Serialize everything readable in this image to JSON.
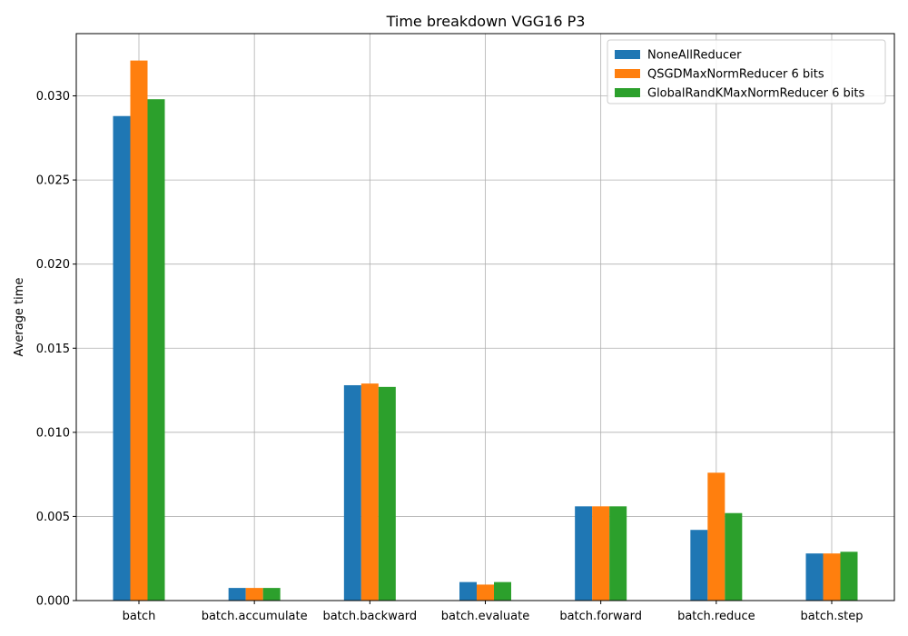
{
  "chart_data": {
    "type": "bar",
    "title": "Time breakdown VGG16 P3",
    "xlabel": "",
    "ylabel": "Average time",
    "ylim": [
      0,
      0.0337
    ],
    "yticks": [
      0.0,
      0.005,
      0.01,
      0.015,
      0.02,
      0.025,
      0.03
    ],
    "ytick_labels": [
      "0.000",
      "0.005",
      "0.010",
      "0.015",
      "0.020",
      "0.025",
      "0.030"
    ],
    "grid": true,
    "legend_position": "top-right",
    "categories": [
      "batch",
      "batch.accumulate",
      "batch.backward",
      "batch.evaluate",
      "batch.forward",
      "batch.reduce",
      "batch.step"
    ],
    "series": [
      {
        "name": "NoneAllReducer",
        "color": "#1f77b4",
        "values": [
          0.0288,
          0.00075,
          0.0128,
          0.0011,
          0.0056,
          0.0042,
          0.0028
        ]
      },
      {
        "name": "QSGDMaxNormReducer 6 bits",
        "color": "#ff7f0e",
        "values": [
          0.0321,
          0.00075,
          0.0129,
          0.00095,
          0.0056,
          0.0076,
          0.0028
        ]
      },
      {
        "name": "GlobalRandKMaxNormReducer 6 bits",
        "color": "#2ca02c",
        "values": [
          0.0298,
          0.00075,
          0.0127,
          0.0011,
          0.0056,
          0.0052,
          0.0029
        ]
      }
    ]
  }
}
